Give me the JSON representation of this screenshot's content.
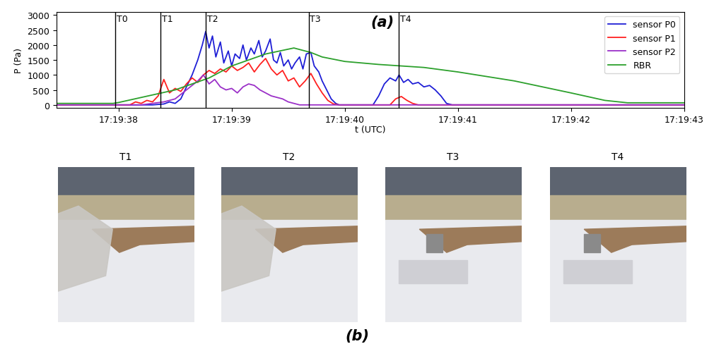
{
  "chart_data": {
    "type": "line",
    "panel_label": "(a)",
    "x_label": "t (UTC)",
    "y_label": "P (Pa)",
    "xlim": [
      37.45,
      43.0
    ],
    "xticks": [
      {
        "value": 38,
        "label": "17:19:38"
      },
      {
        "value": 39,
        "label": "17:19:39"
      },
      {
        "value": 40,
        "label": "17:19:40"
      },
      {
        "value": 41,
        "label": "17:19:41"
      },
      {
        "value": 42,
        "label": "17:19:42"
      },
      {
        "value": 43,
        "label": "17:19:43"
      }
    ],
    "ylim": [
      -100,
      3100
    ],
    "yticks": [
      0,
      500,
      1000,
      1500,
      2000,
      2500,
      3000
    ],
    "legend": "upper right",
    "events": [
      {
        "label": "T0",
        "x": 37.97
      },
      {
        "label": "T1",
        "x": 38.37
      },
      {
        "label": "T2",
        "x": 38.77
      },
      {
        "label": "T3",
        "x": 39.68
      },
      {
        "label": "T4",
        "x": 40.48
      }
    ],
    "series": [
      {
        "name": "sensor P0",
        "color": "#1f1fd6",
        "x": [
          37.45,
          38.3,
          38.4,
          38.45,
          38.5,
          38.55,
          38.6,
          38.65,
          38.7,
          38.74,
          38.77,
          38.8,
          38.83,
          38.86,
          38.9,
          38.93,
          38.97,
          39.0,
          39.03,
          39.07,
          39.1,
          39.13,
          39.17,
          39.2,
          39.24,
          39.27,
          39.3,
          39.34,
          39.37,
          39.4,
          39.43,
          39.46,
          39.5,
          39.53,
          39.56,
          39.6,
          39.63,
          39.66,
          39.7,
          39.73,
          39.77,
          39.8,
          39.84,
          39.88,
          39.92,
          39.95,
          40.25,
          40.3,
          40.35,
          40.4,
          40.45,
          40.48,
          40.52,
          40.56,
          40.6,
          40.65,
          40.7,
          40.75,
          40.8,
          40.85,
          40.9,
          40.95,
          43.0
        ],
        "values": [
          0,
          0,
          30,
          100,
          50,
          200,
          600,
          1000,
          1500,
          2000,
          2450,
          1900,
          2300,
          1600,
          2100,
          1400,
          1800,
          1300,
          1700,
          1550,
          2000,
          1500,
          1900,
          1700,
          2150,
          1600,
          1800,
          2200,
          1500,
          1400,
          1750,
          1300,
          1500,
          1200,
          1400,
          1600,
          1200,
          1700,
          1750,
          1300,
          1100,
          800,
          500,
          200,
          50,
          0,
          0,
          300,
          700,
          900,
          800,
          1000,
          750,
          850,
          700,
          750,
          600,
          650,
          500,
          300,
          50,
          0,
          0
        ]
      },
      {
        "name": "sensor P1",
        "color": "#ff2020",
        "x": [
          37.45,
          38.1,
          38.15,
          38.2,
          38.25,
          38.3,
          38.35,
          38.4,
          38.45,
          38.5,
          38.55,
          38.6,
          38.65,
          38.7,
          38.75,
          38.8,
          38.85,
          38.9,
          38.95,
          39.0,
          39.05,
          39.1,
          39.15,
          39.2,
          39.25,
          39.3,
          39.35,
          39.4,
          39.45,
          39.5,
          39.55,
          39.6,
          39.65,
          39.7,
          39.75,
          39.8,
          39.85,
          39.9,
          39.95,
          40.4,
          40.45,
          40.5,
          40.55,
          40.6,
          40.65,
          43.0
        ],
        "values": [
          0,
          0,
          100,
          50,
          150,
          100,
          300,
          850,
          400,
          550,
          450,
          700,
          900,
          750,
          1000,
          1150,
          1050,
          1200,
          1100,
          1300,
          1150,
          1250,
          1400,
          1100,
          1350,
          1550,
          1200,
          1000,
          1150,
          800,
          900,
          600,
          800,
          1050,
          700,
          400,
          150,
          30,
          0,
          0,
          200,
          280,
          150,
          50,
          0,
          0
        ]
      },
      {
        "name": "sensor P2",
        "color": "#9b30c8",
        "x": [
          37.45,
          38.2,
          38.3,
          38.4,
          38.5,
          38.55,
          38.6,
          38.65,
          38.7,
          38.75,
          38.8,
          38.85,
          38.9,
          38.95,
          39.0,
          39.05,
          39.1,
          39.15,
          39.2,
          39.25,
          39.3,
          39.35,
          39.4,
          39.45,
          39.5,
          39.55,
          39.6,
          43.0
        ],
        "values": [
          0,
          0,
          50,
          100,
          200,
          350,
          500,
          650,
          800,
          1000,
          700,
          850,
          600,
          500,
          550,
          400,
          600,
          700,
          650,
          500,
          400,
          300,
          250,
          200,
          100,
          50,
          0,
          0
        ]
      },
      {
        "name": "RBR",
        "color": "#2ca02c",
        "x": [
          37.45,
          37.95,
          38.0,
          38.5,
          38.8,
          39.0,
          39.3,
          39.55,
          39.7,
          39.8,
          40.0,
          40.3,
          40.5,
          40.7,
          41.0,
          41.5,
          42.0,
          42.3,
          42.5,
          43.0
        ],
        "values": [
          50,
          50,
          80,
          500,
          900,
          1300,
          1700,
          1900,
          1750,
          1600,
          1450,
          1350,
          1300,
          1250,
          1100,
          800,
          400,
          150,
          70,
          70
        ]
      }
    ]
  },
  "photos": {
    "panel_label": "(b)",
    "titles": [
      "T1",
      "T2",
      "T3",
      "T4"
    ]
  }
}
